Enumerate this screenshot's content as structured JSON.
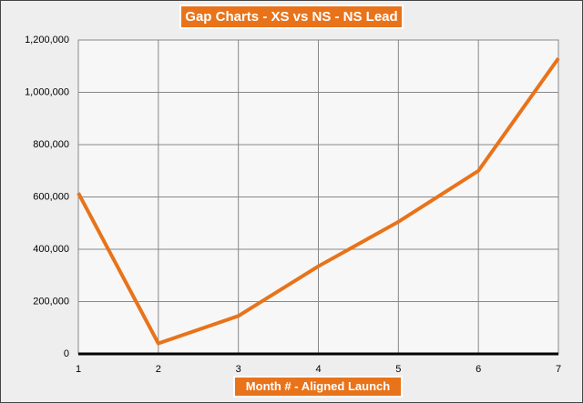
{
  "chart_data": {
    "type": "line",
    "title": "Gap Charts - XS vs NS - NS Lead",
    "x_label": "Month # - Aligned Launch",
    "x": [
      1,
      2,
      3,
      4,
      5,
      6,
      7
    ],
    "series": [
      {
        "name": "NS Lead",
        "color": "#e8731a",
        "values": [
          615000,
          40000,
          145000,
          335000,
          505000,
          700000,
          1130000
        ]
      }
    ],
    "xlim": [
      1,
      7
    ],
    "xticks": [
      1,
      2,
      3,
      4,
      5,
      6,
      7
    ],
    "ylim": [
      0,
      1200000
    ],
    "yticks": [
      0,
      {
        "value": 200000,
        "label": "200,000"
      },
      {
        "value": 400000,
        "label": "400,000"
      },
      {
        "value": 600000,
        "label": "600,000"
      },
      {
        "value": 800000,
        "label": "800,000"
      },
      {
        "value": 1000000,
        "label": "1,000,000"
      },
      {
        "value": 1200000,
        "label": "1,200,000"
      }
    ],
    "grid": true
  }
}
